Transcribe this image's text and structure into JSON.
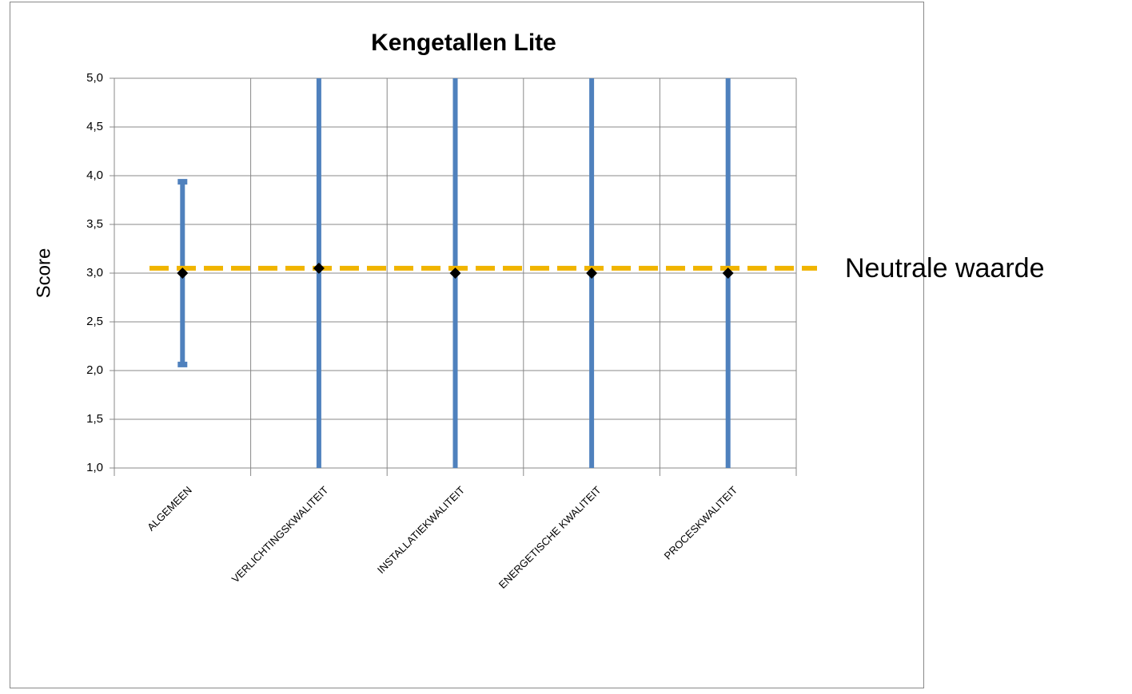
{
  "chart_data": {
    "type": "errorbar",
    "title": "Kengetallen Lite",
    "ylabel": "Score",
    "categories": [
      "ALGEMEEN",
      "VERLICHTINGSKWALITEIT",
      "INSTALLATIEKWALITEIT",
      "ENERGETISCHE KWALITEIT",
      "PROCESKWALITEIT"
    ],
    "values": [
      3.0,
      3.05,
      3.0,
      3.0,
      3.0
    ],
    "errors": [
      0.95,
      2.5,
      2.5,
      2.5,
      2.5
    ],
    "color": "#4f81bd",
    "marker_color": "#000000",
    "ylim": [
      1.0,
      5.0
    ],
    "yticks": [
      {
        "value": 1.0,
        "label": "1,0"
      },
      {
        "value": 1.5,
        "label": "1,5"
      },
      {
        "value": 2.0,
        "label": "2,0"
      },
      {
        "value": 2.5,
        "label": "2,5"
      },
      {
        "value": 3.0,
        "label": "3,0"
      },
      {
        "value": 3.5,
        "label": "3,5"
      },
      {
        "value": 4.0,
        "label": "4,0"
      },
      {
        "value": 4.5,
        "label": "4,5"
      },
      {
        "value": 5.0,
        "label": "5,0"
      }
    ],
    "grid": true,
    "reference_line": {
      "value": 3.05,
      "label": "Neutrale waarde",
      "color": "#f0b400"
    }
  }
}
